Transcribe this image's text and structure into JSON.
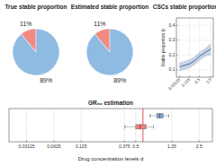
{
  "chart_data": [
    {
      "type": "pie",
      "title": "True stable proportion",
      "values": [
        11,
        89
      ],
      "value_labels": [
        "11%",
        "89%"
      ],
      "colors": [
        "#f08a82",
        "#8fbbe3"
      ],
      "data_labels": true
    },
    {
      "type": "pie",
      "title": "Estimated stable proportion",
      "values": [
        11,
        89
      ],
      "value_labels": [
        "11%",
        "89%"
      ],
      "colors": [
        "#f08a82",
        "#8fbbe3"
      ],
      "data_labels": true
    },
    {
      "type": "line",
      "title": "CSCs stable proportion",
      "y_label": "Stable proportion (c",
      "x": [
        0.03125,
        0.0625,
        0.125,
        0.25,
        0.5,
        1.25,
        2.5
      ],
      "values": [
        0.12,
        0.13,
        0.14,
        0.16,
        0.19,
        0.22,
        0.24
      ],
      "band_low": [
        0.09,
        0.1,
        0.11,
        0.13,
        0.16,
        0.19,
        0.2
      ],
      "band_high": [
        0.15,
        0.16,
        0.17,
        0.19,
        0.22,
        0.25,
        0.28
      ],
      "color": "#4a6fa5",
      "log": "x",
      "xlim": [
        0.02,
        3.5
      ],
      "ylim": [
        0.05,
        0.45
      ],
      "xticks": [
        0.03125,
        0.125,
        0.5,
        2.5
      ],
      "yticks": [
        0.1,
        0.2,
        0.3,
        0.4
      ],
      "grid": true
    },
    {
      "type": "box",
      "title": "GR₅₀ estimation",
      "x_label": "Drug concentration levels d",
      "orientation": "horizontal",
      "log": "x",
      "xlim": [
        0.02,
        3.5
      ],
      "xticks": [
        0.03125,
        0.0625,
        0.125,
        0.375,
        0.5,
        1.25,
        2.5
      ],
      "grid": true,
      "tick_labels": "x",
      "boxes": [
        {
          "color": "#6fa8dc",
          "min": 0.72,
          "q1": 0.85,
          "median": 0.92,
          "q3": 1.0,
          "max": 1.15
        },
        {
          "color": "#e8847c",
          "min": 0.38,
          "q1": 0.5,
          "median": 0.56,
          "q3": 0.65,
          "max": 0.78
        }
      ],
      "vlines": [
        {
          "value": 0.6,
          "color": "#d62728"
        }
      ]
    }
  ]
}
